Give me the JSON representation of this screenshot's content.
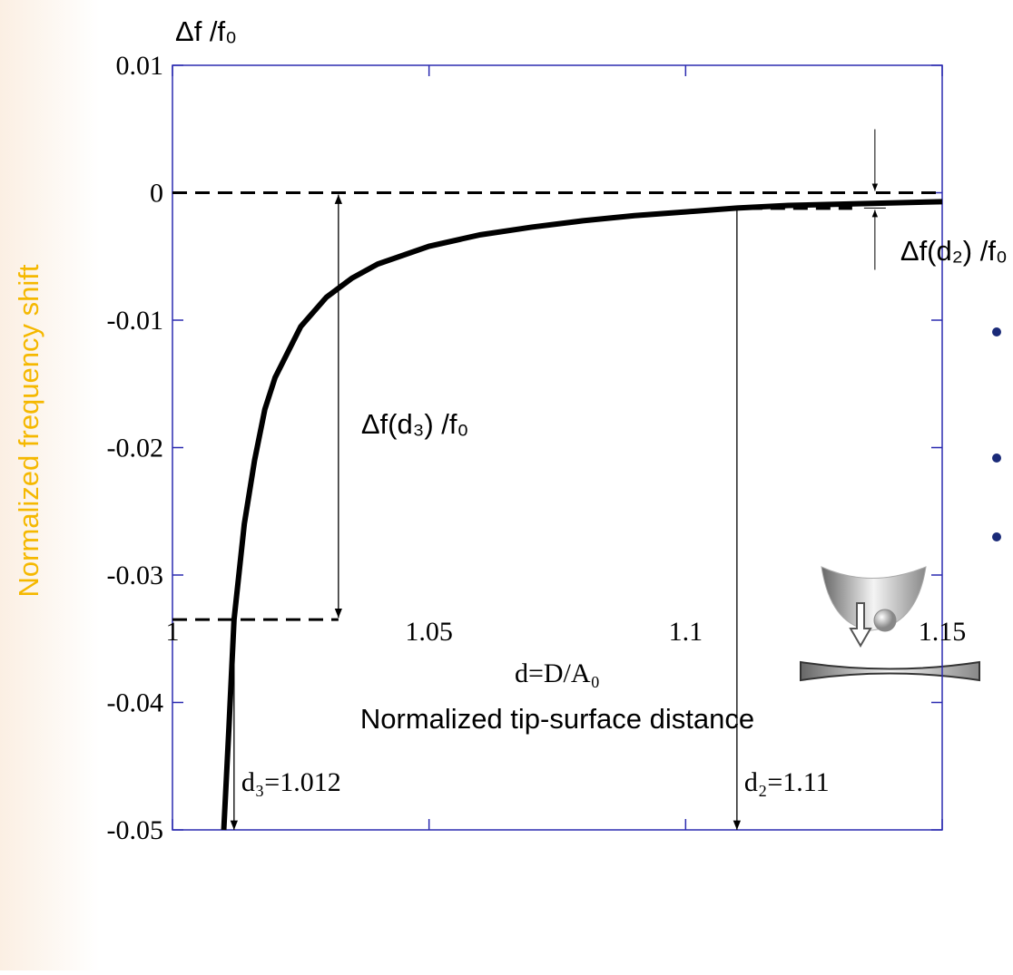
{
  "chart_data": {
    "type": "line",
    "y_title": "Δf /f₀",
    "y_label": "Normalized frequency shift",
    "x_label": "d=D/A₀",
    "x_sublabel": "Normalized tip-surface distance",
    "xlim": [
      1,
      1.15
    ],
    "xticks": [
      1,
      1.05,
      1.1,
      1.15
    ],
    "ylim": [
      -0.05,
      0.01
    ],
    "yticks": [
      0.01,
      0,
      -0.01,
      -0.02,
      -0.03,
      -0.04,
      -0.05
    ],
    "x": [
      1.01,
      1.011,
      1.012,
      1.014,
      1.016,
      1.018,
      1.02,
      1.025,
      1.03,
      1.035,
      1.04,
      1.05,
      1.06,
      1.07,
      1.08,
      1.09,
      1.1,
      1.11,
      1.12,
      1.13,
      1.14,
      1.15
    ],
    "series": [
      {
        "color": "#000000",
        "values": [
          -0.05,
          -0.042,
          -0.0335,
          -0.026,
          -0.021,
          -0.017,
          -0.0145,
          -0.0105,
          -0.0082,
          -0.0067,
          -0.0056,
          -0.0042,
          -0.0033,
          -0.0027,
          -0.0022,
          -0.0018,
          -0.0015,
          -0.0012,
          -0.001,
          -0.0009,
          -0.0008,
          -0.0007
        ]
      }
    ],
    "markers": [
      {
        "label": "d₃=1.012",
        "x": 1.012,
        "y": -0.0335,
        "shift_label": "Δf(d₃) /f₀"
      },
      {
        "label": "d₂=1.11",
        "x": 1.11,
        "y": -0.0012,
        "shift_label": "Δf(d₂) /f₀"
      }
    ]
  }
}
